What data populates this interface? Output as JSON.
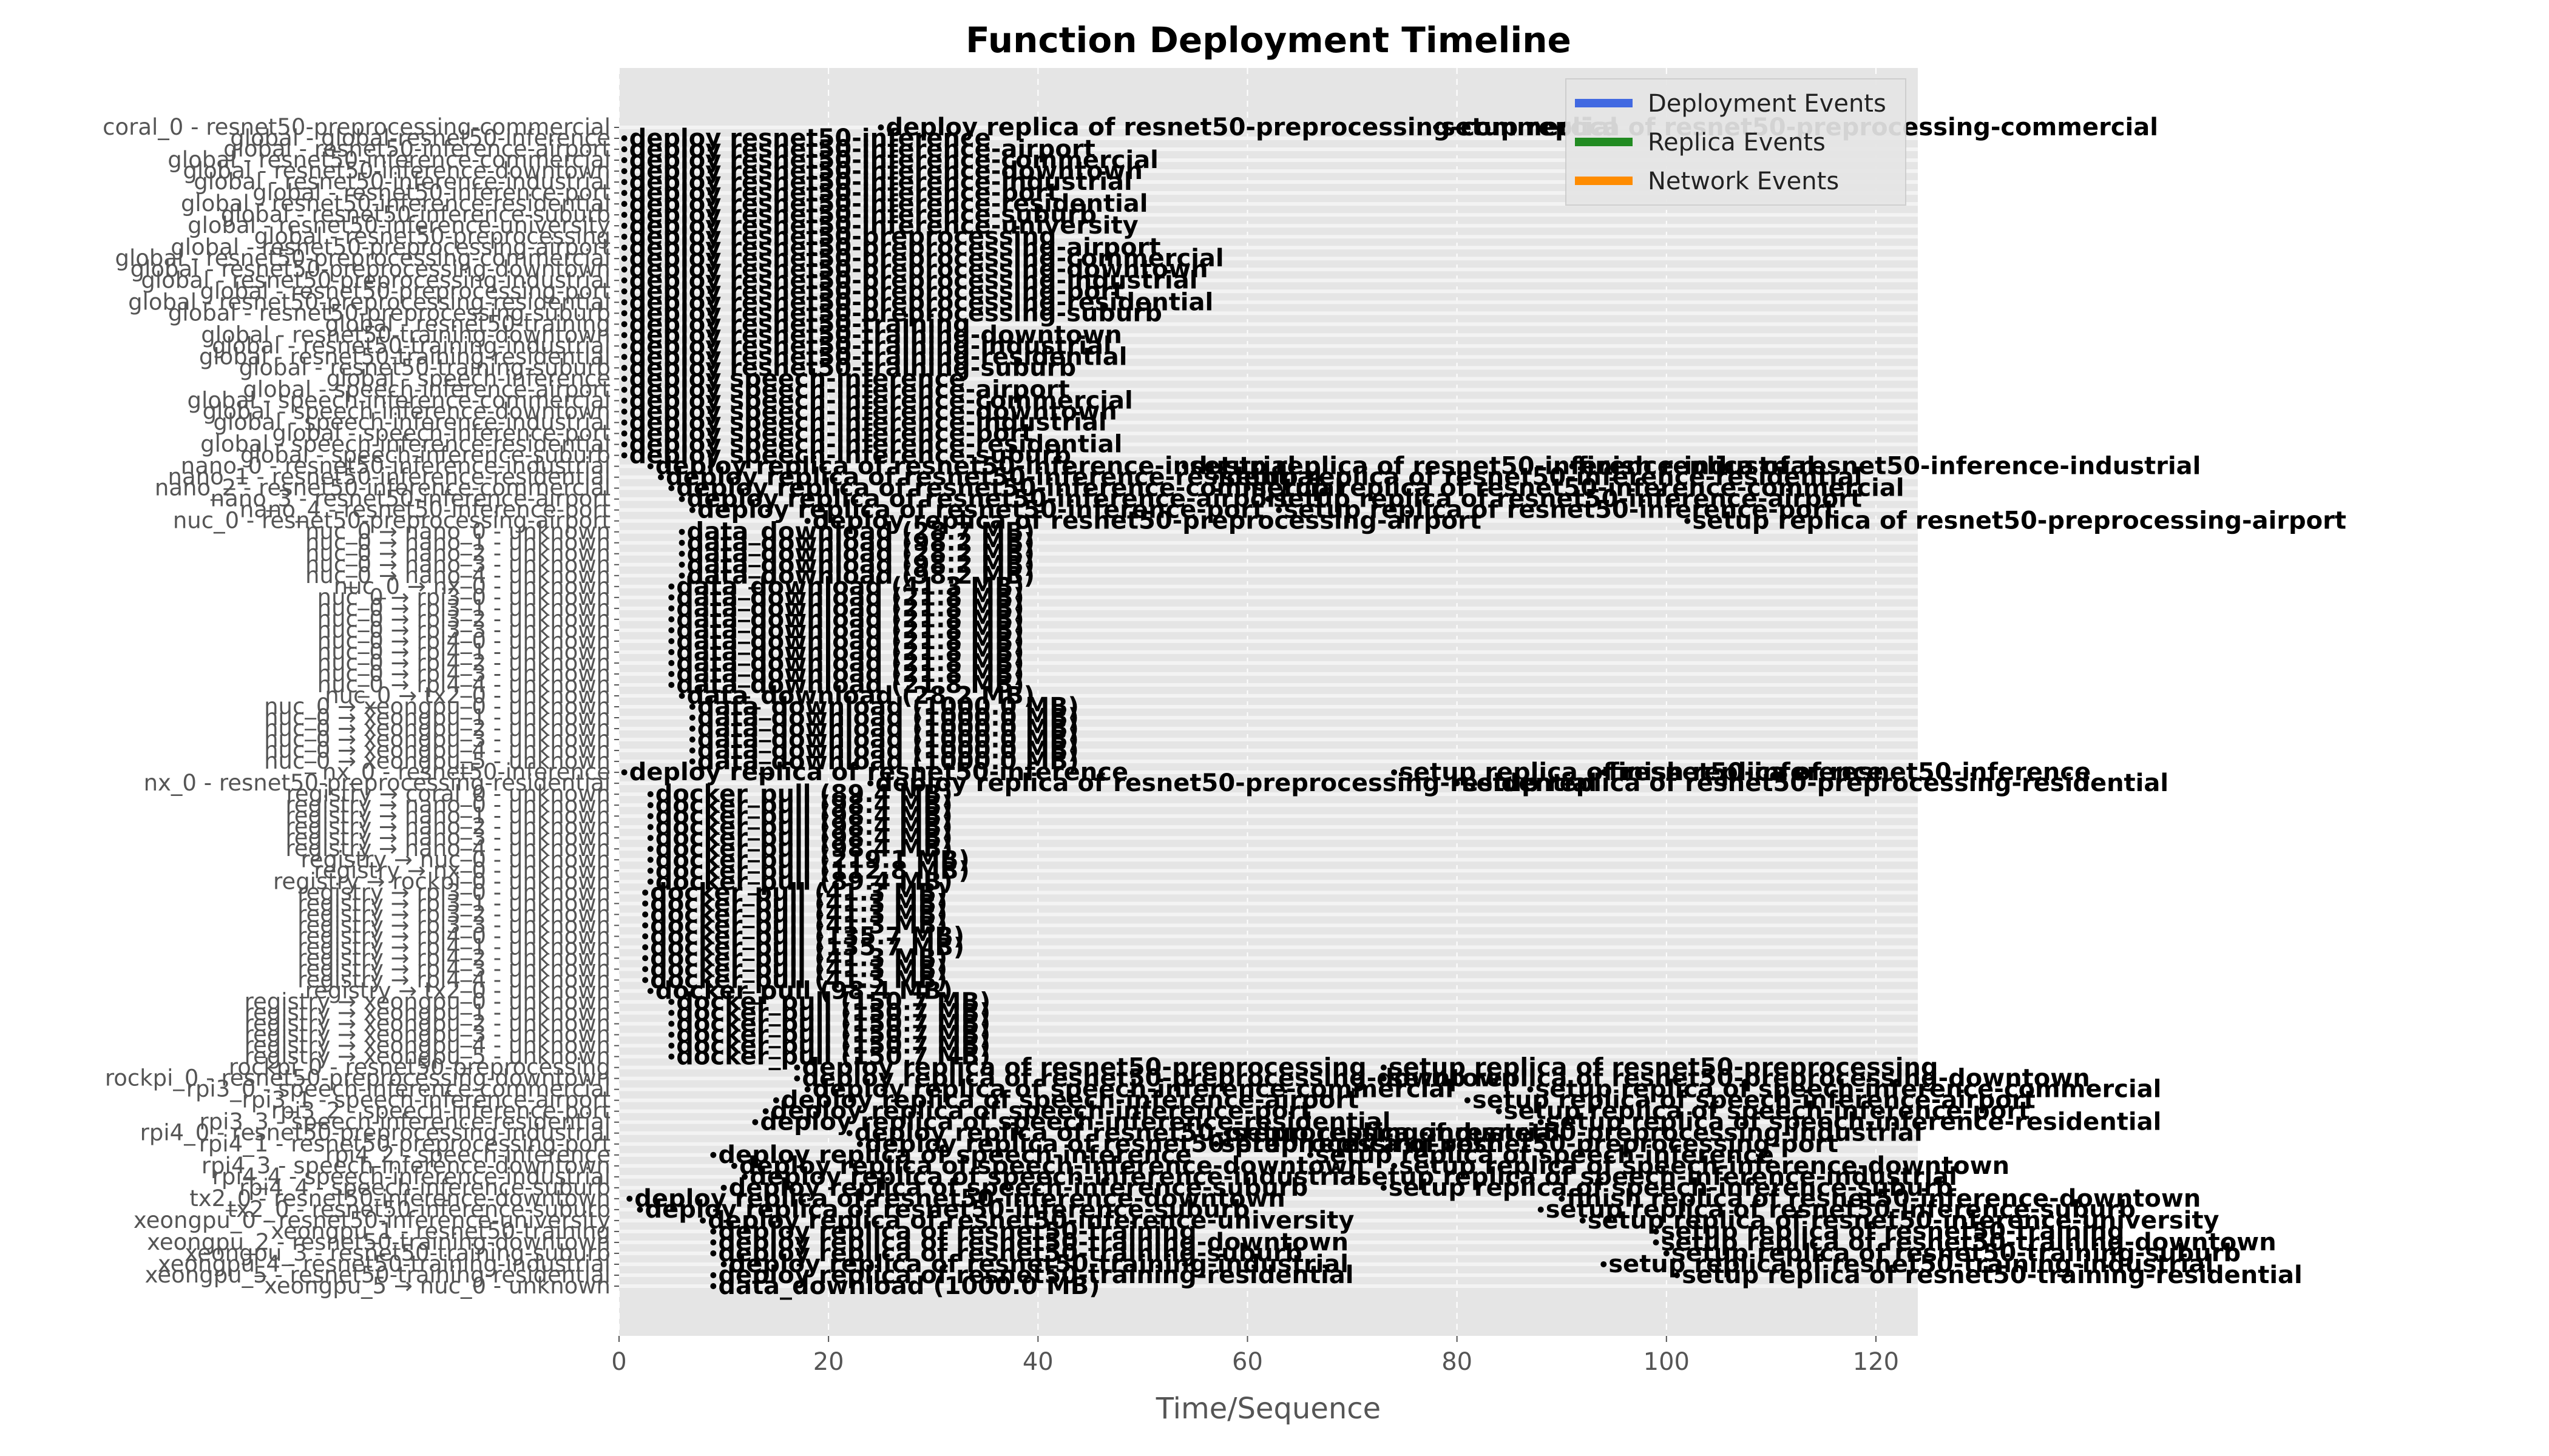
{
  "chart_data": {
    "type": "timeline",
    "title": "Function Deployment Timeline",
    "xlabel": "Time/Sequence",
    "ylabel": "",
    "xlim": [
      0,
      124
    ],
    "xticks": [
      0,
      20,
      40,
      60,
      80,
      100,
      120
    ],
    "grid": true,
    "legend": {
      "placement": "top-right",
      "entries": [
        {
          "label": "Deployment Events",
          "color": "#4169e1"
        },
        {
          "label": "Replica Events",
          "color": "#228b22"
        },
        {
          "label": "Network Events",
          "color": "#ff8c00"
        }
      ]
    },
    "rows": [
      "coral_0 - resnet50-preprocessing-commercial",
      "global - global-resnet50-inference",
      "global - resnet50-inference-airport",
      "global - resnet50-inference-commercial",
      "global - resnet50-inference-downtown",
      "global - resnet50-inference-industrial",
      "global - resnet50-inference-port",
      "global - resnet50-inference-residential",
      "global - resnet50-inference-suburb",
      "global - resnet50-inference-university",
      "global - resnet50-preprocessing",
      "global - resnet50-preprocessing-airport",
      "global - resnet50-preprocessing-commercial",
      "global - resnet50-preprocessing-downtown",
      "global - resnet50-preprocessing-industrial",
      "global - resnet50-preprocessing-port",
      "global - resnet50-preprocessing-residential",
      "global - resnet50-preprocessing-suburb",
      "global - resnet50-training",
      "global - resnet50-training-downtown",
      "global - resnet50-training-industrial",
      "global - resnet50-training-residential",
      "global - resnet50-training-suburb",
      "global - speech-inference",
      "global - speech-inference-airport",
      "global - speech-inference-commercial",
      "global - speech-inference-downtown",
      "global - speech-inference-industrial",
      "global - speech-inference-port",
      "global - speech-inference-residential",
      "global - speech-inference-suburb",
      "nano_0 - resnet50-inference-industrial",
      "nano_1 - resnet50-inference-residential",
      "nano_2 - resnet50-inference-commercial",
      "nano_3 - resnet50-inference-airport",
      "nano_4 - resnet50-inference-port",
      "nuc_0 - resnet50-preprocessing-airport",
      "nuc_0 → nano_0 - unknown",
      "nuc_0 → nano_1 - unknown",
      "nuc_0 → nano_2 - unknown",
      "nuc_0 → nano_3 - unknown",
      "nuc_0 → nano_4 - unknown",
      "nuc_0 → nx_0 - unknown",
      "nuc_0 → rpi3_0 - unknown",
      "nuc_0 → rpi3_1 - unknown",
      "nuc_0 → rpi3_2 - unknown",
      "nuc_0 → rpi3_3 - unknown",
      "nuc_0 → rpi4_0 - unknown",
      "nuc_0 → rpi4_1 - unknown",
      "nuc_0 → rpi4_2 - unknown",
      "nuc_0 → rpi4_3 - unknown",
      "nuc_0 → rpi4_4 - unknown",
      "nuc_0 → tx2_0 - unknown",
      "nuc_0 → xeongpu_0 - unknown",
      "nuc_0 → xeongpu_1 - unknown",
      "nuc_0 → xeongpu_2 - unknown",
      "nuc_0 → xeongpu_3 - unknown",
      "nuc_0 → xeongpu_4 - unknown",
      "nuc_0 → xeongpu_5 - unknown",
      "nx_0 - resnet50-inference",
      "nx_0 - resnet50-preprocessing-residential",
      "registry → coral_0 - unknown",
      "registry → nano_0 - unknown",
      "registry → nano_1 - unknown",
      "registry → nano_2 - unknown",
      "registry → nano_3 - unknown",
      "registry → nano_4 - unknown",
      "registry → nuc_0 - unknown",
      "registry → nx_0 - unknown",
      "registry → rockpi_0 - unknown",
      "registry → rpi3_0 - unknown",
      "registry → rpi3_1 - unknown",
      "registry → rpi3_2 - unknown",
      "registry → rpi3_3 - unknown",
      "registry → rpi4_0 - unknown",
      "registry → rpi4_1 - unknown",
      "registry → rpi4_2 - unknown",
      "registry → rpi4_3 - unknown",
      "registry → rpi4_4 - unknown",
      "registry → tx2_0 - unknown",
      "registry → xeongpu_0 - unknown",
      "registry → xeongpu_1 - unknown",
      "registry → xeongpu_2 - unknown",
      "registry → xeongpu_3 - unknown",
      "registry → xeongpu_4 - unknown",
      "registry → xeongpu_5 - unknown",
      "rockpi_0 - resnet50-preprocessing",
      "rockpi_0 - resnet50-preprocessing-downtown",
      "rpi3_0 - speech-inference-commercial",
      "rpi3_1 - speech-inference-airport",
      "rpi3_2 - speech-inference-port",
      "rpi3_3 - speech-inference-residential",
      "rpi4_0 - resnet50-preprocessing-industrial",
      "rpi4_1 - resnet50-preprocessing-port",
      "rpi4_2 - speech-inference",
      "rpi4_3 - speech-inference-downtown",
      "rpi4_4 - speech-inference-industrial",
      "rpi4_4 - speech-inference-suburb",
      "tx2_0 - resnet50-inference-downtown",
      "tx2_0 - resnet50-inference-suburb",
      "xeongpu_0 - resnet50-inference-university",
      "xeongpu_1 - resnet50-training",
      "xeongpu_2 - resnet50-training-downtown",
      "xeongpu_3 - resnet50-training-suburb",
      "xeongpu_4 - resnet50-training-industrial",
      "xeongpu_5 - resnet50-training-residential",
      "xeongpu_5 → nuc_0 - unknown"
    ],
    "annotations": [
      {
        "row": 0,
        "x": 25,
        "text": "deploy replica of resnet50-preprocessing-commercial"
      },
      {
        "row": 0,
        "x": 78,
        "text": "setup replica of resnet50-preprocessing-commercial"
      },
      {
        "row": 1,
        "x": 0.5,
        "text": "deploy resnet50-inference"
      },
      {
        "row": 2,
        "x": 0.5,
        "text": "deploy resnet50-inference-airport"
      },
      {
        "row": 3,
        "x": 0.5,
        "text": "deploy resnet50-inference-commercial"
      },
      {
        "row": 4,
        "x": 0.5,
        "text": "deploy resnet50-inference-downtown"
      },
      {
        "row": 5,
        "x": 0.5,
        "text": "deploy resnet50-inference-industrial"
      },
      {
        "row": 6,
        "x": 0.5,
        "text": "deploy resnet50-inference-port"
      },
      {
        "row": 7,
        "x": 0.5,
        "text": "deploy resnet50-inference-residential"
      },
      {
        "row": 8,
        "x": 0.5,
        "text": "deploy resnet50-inference-suburb"
      },
      {
        "row": 9,
        "x": 0.5,
        "text": "deploy resnet50-inference-university"
      },
      {
        "row": 10,
        "x": 0.5,
        "text": "deploy resnet50-preprocessing"
      },
      {
        "row": 11,
        "x": 0.5,
        "text": "deploy resnet50-preprocessing-airport"
      },
      {
        "row": 12,
        "x": 0.5,
        "text": "deploy resnet50-preprocessing-commercial"
      },
      {
        "row": 13,
        "x": 0.5,
        "text": "deploy resnet50-preprocessing-downtown"
      },
      {
        "row": 14,
        "x": 0.5,
        "text": "deploy resnet50-preprocessing-industrial"
      },
      {
        "row": 15,
        "x": 0.5,
        "text": "deploy resnet50-preprocessing-port"
      },
      {
        "row": 16,
        "x": 0.5,
        "text": "deploy resnet50-preprocessing-residential"
      },
      {
        "row": 17,
        "x": 0.5,
        "text": "deploy resnet50-preprocessing-suburb"
      },
      {
        "row": 18,
        "x": 0.5,
        "text": "deploy resnet50-training"
      },
      {
        "row": 19,
        "x": 0.5,
        "text": "deploy resnet50-training-downtown"
      },
      {
        "row": 20,
        "x": 0.5,
        "text": "deploy resnet50-training-industrial"
      },
      {
        "row": 21,
        "x": 0.5,
        "text": "deploy resnet50-training-residential"
      },
      {
        "row": 22,
        "x": 0.5,
        "text": "deploy resnet50-training-suburb"
      },
      {
        "row": 23,
        "x": 0.5,
        "text": "deploy speech-inference"
      },
      {
        "row": 24,
        "x": 0.5,
        "text": "deploy speech-inference-airport"
      },
      {
        "row": 25,
        "x": 0.5,
        "text": "deploy speech-inference-commercial"
      },
      {
        "row": 26,
        "x": 0.5,
        "text": "deploy speech-inference-downtown"
      },
      {
        "row": 27,
        "x": 0.5,
        "text": "deploy speech-inference-industrial"
      },
      {
        "row": 28,
        "x": 0.5,
        "text": "deploy speech-inference-port"
      },
      {
        "row": 29,
        "x": 0.5,
        "text": "deploy speech-inference-residential"
      },
      {
        "row": 30,
        "x": 0.5,
        "text": "deploy speech-inference-suburb"
      },
      {
        "row": 31,
        "x": 3,
        "text": "deploy replica of resnet50-inference-industrial"
      },
      {
        "row": 31,
        "x": 54,
        "text": "setup replica of resnet50-inference-industrial"
      },
      {
        "row": 31,
        "x": 91,
        "text": "finish replica of resnet50-inference-industrial"
      },
      {
        "row": 32,
        "x": 4,
        "text": "deploy replica of resnet50-inference-residential"
      },
      {
        "row": 32,
        "x": 57,
        "text": "setup replica of resnet50-inference-residential"
      },
      {
        "row": 33,
        "x": 5,
        "text": "deploy replica of resnet50-inference-commercial"
      },
      {
        "row": 33,
        "x": 60,
        "text": "setup replica of resnet50-inference-commercial"
      },
      {
        "row": 34,
        "x": 6,
        "text": "deploy replica of resnet50-inference-airport"
      },
      {
        "row": 34,
        "x": 62,
        "text": "setup replica of resnet50-inference-airport"
      },
      {
        "row": 35,
        "x": 7,
        "text": "deploy replica of resnet50-inference-port"
      },
      {
        "row": 35,
        "x": 63,
        "text": "setup replica of resnet50-inference-port"
      },
      {
        "row": 36,
        "x": 18,
        "text": "deploy replica of resnet50-preprocessing-airport"
      },
      {
        "row": 36,
        "x": 102,
        "text": "setup replica of resnet50-preprocessing-airport"
      },
      {
        "row": 37,
        "x": 6,
        "text": "data_download (28.7 MB)"
      },
      {
        "row": 38,
        "x": 6,
        "text": "data_download (98.2 MB)"
      },
      {
        "row": 39,
        "x": 6,
        "text": "data_download (28.2 MB)"
      },
      {
        "row": 40,
        "x": 6,
        "text": "data_download (98.2 MB)"
      },
      {
        "row": 41,
        "x": 6,
        "text": "data_download (98.2 MB)"
      },
      {
        "row": 42,
        "x": 5,
        "text": "data_download (41.3 MB)"
      },
      {
        "row": 43,
        "x": 5,
        "text": "data_download (21.8 MB)"
      },
      {
        "row": 44,
        "x": 5,
        "text": "data_download (21.8 MB)"
      },
      {
        "row": 45,
        "x": 5,
        "text": "data_download (21.8 MB)"
      },
      {
        "row": 46,
        "x": 5,
        "text": "data_download (21.8 MB)"
      },
      {
        "row": 47,
        "x": 5,
        "text": "data_download (21.8 MB)"
      },
      {
        "row": 48,
        "x": 5,
        "text": "data_download (21.8 MB)"
      },
      {
        "row": 49,
        "x": 5,
        "text": "data_download (21.8 MB)"
      },
      {
        "row": 50,
        "x": 5,
        "text": "data_download (21.8 MB)"
      },
      {
        "row": 51,
        "x": 5,
        "text": "data_download (21.8 MB)"
      },
      {
        "row": 52,
        "x": 6,
        "text": "data_download (28.2 MB)"
      },
      {
        "row": 53,
        "x": 7,
        "text": "data_download (1000.0 MB)"
      },
      {
        "row": 54,
        "x": 7,
        "text": "data_download (1000.0 MB)"
      },
      {
        "row": 55,
        "x": 7,
        "text": "data_download (1000.0 MB)"
      },
      {
        "row": 56,
        "x": 7,
        "text": "data_download (1000.0 MB)"
      },
      {
        "row": 57,
        "x": 7,
        "text": "data_download (1000.0 MB)"
      },
      {
        "row": 58,
        "x": 7,
        "text": "data_download (1000.0 MB)"
      },
      {
        "row": 59,
        "x": 0.5,
        "text": "deploy replica of resnet50-inference"
      },
      {
        "row": 59,
        "x": 74,
        "text": "setup replica of resnet50-inference"
      },
      {
        "row": 59,
        "x": 94,
        "text": "finish replica of resnet50-inference"
      },
      {
        "row": 60,
        "x": 24,
        "text": "deploy replica of resnet50-preprocessing-residential"
      },
      {
        "row": 60,
        "x": 80,
        "text": "setup replica of resnet50-preprocessing-residential"
      },
      {
        "row": 61,
        "x": 3,
        "text": "docker_pull (89.4 MB)"
      },
      {
        "row": 62,
        "x": 3,
        "text": "docker_pull (98.4 MB)"
      },
      {
        "row": 63,
        "x": 3,
        "text": "docker_pull (98.4 MB)"
      },
      {
        "row": 64,
        "x": 3,
        "text": "docker_pull (98.4 MB)"
      },
      {
        "row": 65,
        "x": 3,
        "text": "docker_pull (98.4 MB)"
      },
      {
        "row": 66,
        "x": 3,
        "text": "docker_pull (98.4 MB)"
      },
      {
        "row": 67,
        "x": 3,
        "text": "docker_pull (219.1 MB)"
      },
      {
        "row": 68,
        "x": 3,
        "text": "docker_pull (112.8 MB)"
      },
      {
        "row": 69,
        "x": 3,
        "text": "docker_pull (89.4 MB)"
      },
      {
        "row": 70,
        "x": 2.5,
        "text": "docker_pull (41.3 MB)"
      },
      {
        "row": 71,
        "x": 2.5,
        "text": "docker_pull (41.3 MB)"
      },
      {
        "row": 72,
        "x": 2.5,
        "text": "docker_pull (41.3 MB)"
      },
      {
        "row": 73,
        "x": 2.5,
        "text": "docker_pull (41.3 MB)"
      },
      {
        "row": 74,
        "x": 2.5,
        "text": "docker_pull (135.7 MB)"
      },
      {
        "row": 75,
        "x": 2.5,
        "text": "docker_pull (135.7 MB)"
      },
      {
        "row": 76,
        "x": 2.5,
        "text": "docker_pull (41.3 MB)"
      },
      {
        "row": 77,
        "x": 2.5,
        "text": "docker_pull (41.3 MB)"
      },
      {
        "row": 78,
        "x": 2.5,
        "text": "docker_pull (41.3 MB)"
      },
      {
        "row": 79,
        "x": 3,
        "text": "docker_pull (98.4 MB)"
      },
      {
        "row": 80,
        "x": 5,
        "text": "docker_pull (150.7 MB)"
      },
      {
        "row": 81,
        "x": 5,
        "text": "docker_pull (150.7 MB)"
      },
      {
        "row": 82,
        "x": 5,
        "text": "docker_pull (150.7 MB)"
      },
      {
        "row": 83,
        "x": 5,
        "text": "docker_pull (150.7 MB)"
      },
      {
        "row": 84,
        "x": 5,
        "text": "docker_pull (150.7 MB)"
      },
      {
        "row": 85,
        "x": 5,
        "text": "docker_pull (150.7 MB)"
      },
      {
        "row": 86,
        "x": 17,
        "text": "deploy replica of resnet50-preprocessing"
      },
      {
        "row": 86,
        "x": 73,
        "text": "setup replica of resnet50-preprocessing"
      },
      {
        "row": 87,
        "x": 17,
        "text": "deploy replica of resnet50-preprocessing-downtown"
      },
      {
        "row": 87,
        "x": 73,
        "text": "setup replica of resnet50-preprocessing-downtown"
      },
      {
        "row": 88,
        "x": 18,
        "text": "deploy replica of speech-inference-commercial"
      },
      {
        "row": 88,
        "x": 87,
        "text": "setup replica of speech-inference-commercial"
      },
      {
        "row": 89,
        "x": 15,
        "text": "deploy replica of speech-inference-airport"
      },
      {
        "row": 89,
        "x": 81,
        "text": "setup replica of speech-inference-airport"
      },
      {
        "row": 90,
        "x": 14,
        "text": "deploy replica of speech-inference-port"
      },
      {
        "row": 90,
        "x": 84,
        "text": "setup replica of speech-inference-port"
      },
      {
        "row": 91,
        "x": 13,
        "text": "deploy replica of speech-inference-residential"
      },
      {
        "row": 91,
        "x": 88,
        "text": "setup replica of speech-inference-residential"
      },
      {
        "row": 92,
        "x": 22,
        "text": "deploy replica of resnet50-preprocessing-industrial"
      },
      {
        "row": 92,
        "x": 58,
        "text": "setup replica of resnet50-preprocessing-industrial"
      },
      {
        "row": 93,
        "x": 23,
        "text": "deploy replica of resnet50-preprocessing-port"
      },
      {
        "row": 93,
        "x": 57,
        "text": "setup replica of resnet50-preprocessing-port"
      },
      {
        "row": 94,
        "x": 9,
        "text": "deploy replica of speech-inference"
      },
      {
        "row": 94,
        "x": 66,
        "text": "setup replica of speech-inference"
      },
      {
        "row": 95,
        "x": 11,
        "text": "deploy replica of speech-inference-downtown"
      },
      {
        "row": 95,
        "x": 74,
        "text": "setup replica of speech-inference-downtown"
      },
      {
        "row": 96,
        "x": 12,
        "text": "deploy replica of speech-inference-industrial"
      },
      {
        "row": 96,
        "x": 70,
        "text": "setup replica of speech-inference-industrial"
      },
      {
        "row": 97,
        "x": 10,
        "text": "deploy replica of speech-inference-suburb"
      },
      {
        "row": 97,
        "x": 73,
        "text": "setup replica of speech-inference-suburb"
      },
      {
        "row": 98,
        "x": 1,
        "text": "deploy replica of resnet50-inference-downtown"
      },
      {
        "row": 98,
        "x": 90,
        "text": "finish replica of resnet50-inference-downtown"
      },
      {
        "row": 99,
        "x": 2,
        "text": "deploy replica of resnet50-inference-suburb"
      },
      {
        "row": 99,
        "x": 88,
        "text": "setup replica of resnet50-inference-suburb"
      },
      {
        "row": 100,
        "x": 8,
        "text": "deploy replica of resnet50-inference-university"
      },
      {
        "row": 100,
        "x": 92,
        "text": "setup replica of resnet50-inference-university"
      },
      {
        "row": 101,
        "x": 9,
        "text": "deploy replica of resnet50-training"
      },
      {
        "row": 101,
        "x": 99,
        "text": "setup replica of resnet50-training"
      },
      {
        "row": 102,
        "x": 9,
        "text": "deploy replica of resnet50-training-downtown"
      },
      {
        "row": 102,
        "x": 99,
        "text": "setup replica of resnet50-training-downtown"
      },
      {
        "row": 103,
        "x": 9,
        "text": "deploy replica of resnet50-training-suburb"
      },
      {
        "row": 103,
        "x": 100,
        "text": "setup replica of resnet50-training-suburb"
      },
      {
        "row": 104,
        "x": 10,
        "text": "deploy replica of resnet50-training-industrial"
      },
      {
        "row": 104,
        "x": 94,
        "text": "setup replica of resnet50-training-industrial"
      },
      {
        "row": 105,
        "x": 9,
        "text": "deploy replica of resnet50-training-residential"
      },
      {
        "row": 105,
        "x": 101,
        "text": "setup replica of resnet50-training-residential"
      },
      {
        "row": 106,
        "x": 9,
        "text": "data_download (1000.0 MB)"
      }
    ]
  }
}
